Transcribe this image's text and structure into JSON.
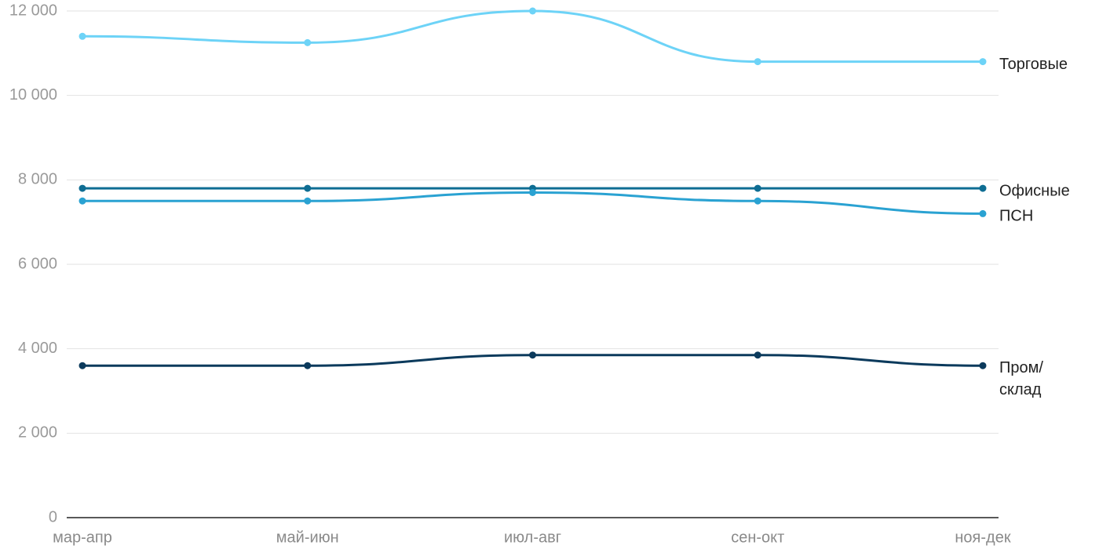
{
  "chart_data": {
    "type": "line",
    "categories": [
      "мар-апр",
      "май-июн",
      "июл-авг",
      "сен-окт",
      "ноя-дек"
    ],
    "series": [
      {
        "name": "Торговые",
        "color": "#6dd3f7",
        "values": [
          11400,
          11250,
          12000,
          10800,
          10800
        ]
      },
      {
        "name": "Офисные",
        "color": "#0e6d93",
        "values": [
          7800,
          7800,
          7800,
          7800,
          7800
        ]
      },
      {
        "name": "ПСН",
        "color": "#2aa2d2",
        "values": [
          7500,
          7500,
          7700,
          7500,
          7200
        ]
      },
      {
        "name": "Пром/склад",
        "color": "#0b3a5c",
        "values": [
          3600,
          3600,
          3850,
          3850,
          3600
        ]
      }
    ],
    "ylim": [
      0,
      12000
    ],
    "yticks": [
      0,
      {
        "value": 2000,
        "label": "2 000"
      },
      {
        "value": 4000,
        "label": "4 000"
      },
      {
        "value": 6000,
        "label": "6 000"
      },
      {
        "value": 8000,
        "label": "8 000"
      },
      {
        "value": 10000,
        "label": "10 000"
      },
      {
        "value": 12000,
        "label": "12 000"
      }
    ],
    "grid": true
  }
}
